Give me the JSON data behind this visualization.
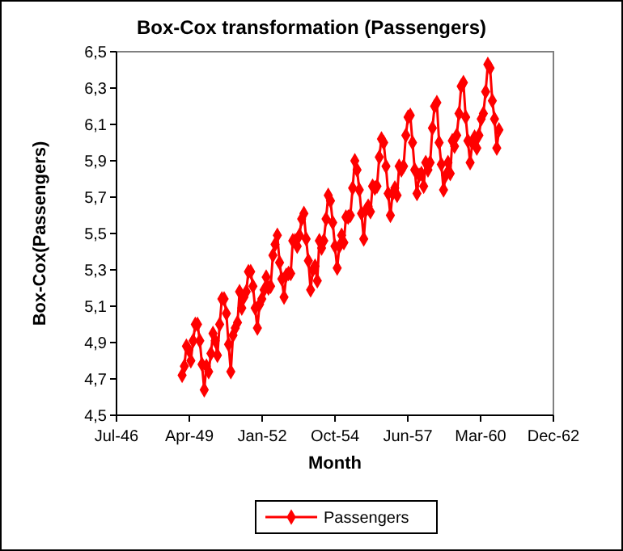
{
  "chart_data": {
    "type": "line",
    "title": "Box-Cox transformation (Passengers)",
    "xlabel": "Month",
    "ylabel": "Box-Cox(Passengers)",
    "x": [
      "1949-01",
      "1949-02",
      "1949-03",
      "1949-04",
      "1949-05",
      "1949-06",
      "1949-07",
      "1949-08",
      "1949-09",
      "1949-10",
      "1949-11",
      "1949-12",
      "1950-01",
      "1950-02",
      "1950-03",
      "1950-04",
      "1950-05",
      "1950-06",
      "1950-07",
      "1950-08",
      "1950-09",
      "1950-10",
      "1950-11",
      "1950-12",
      "1951-01",
      "1951-02",
      "1951-03",
      "1951-04",
      "1951-05",
      "1951-06",
      "1951-07",
      "1951-08",
      "1951-09",
      "1951-10",
      "1951-11",
      "1951-12",
      "1952-01",
      "1952-02",
      "1952-03",
      "1952-04",
      "1952-05",
      "1952-06",
      "1952-07",
      "1952-08",
      "1952-09",
      "1952-10",
      "1952-11",
      "1952-12",
      "1953-01",
      "1953-02",
      "1953-03",
      "1953-04",
      "1953-05",
      "1953-06",
      "1953-07",
      "1953-08",
      "1953-09",
      "1953-10",
      "1953-11",
      "1953-12",
      "1954-01",
      "1954-02",
      "1954-03",
      "1954-04",
      "1954-05",
      "1954-06",
      "1954-07",
      "1954-08",
      "1954-09",
      "1954-10",
      "1954-11",
      "1954-12",
      "1955-01",
      "1955-02",
      "1955-03",
      "1955-04",
      "1955-05",
      "1955-06",
      "1955-07",
      "1955-08",
      "1955-09",
      "1955-10",
      "1955-11",
      "1955-12",
      "1956-01",
      "1956-02",
      "1956-03",
      "1956-04",
      "1956-05",
      "1956-06",
      "1956-07",
      "1956-08",
      "1956-09",
      "1956-10",
      "1956-11",
      "1956-12",
      "1957-01",
      "1957-02",
      "1957-03",
      "1957-04",
      "1957-05",
      "1957-06",
      "1957-07",
      "1957-08",
      "1957-09",
      "1957-10",
      "1957-11",
      "1957-12",
      "1958-01",
      "1958-02",
      "1958-03",
      "1958-04",
      "1958-05",
      "1958-06",
      "1958-07",
      "1958-08",
      "1958-09",
      "1958-10",
      "1958-11",
      "1958-12",
      "1959-01",
      "1959-02",
      "1959-03",
      "1959-04",
      "1959-05",
      "1959-06",
      "1959-07",
      "1959-08",
      "1959-09",
      "1959-10",
      "1959-11",
      "1959-12",
      "1960-01",
      "1960-02",
      "1960-03",
      "1960-04",
      "1960-05",
      "1960-06",
      "1960-07",
      "1960-08",
      "1960-09",
      "1960-10",
      "1960-11",
      "1960-12"
    ],
    "series": [
      {
        "name": "Passengers",
        "color": "#ff0000",
        "values": [
          4.72,
          4.77,
          4.88,
          4.86,
          4.8,
          4.91,
          5.0,
          5.0,
          4.91,
          4.78,
          4.64,
          4.77,
          4.74,
          4.84,
          4.95,
          4.91,
          4.83,
          5.0,
          5.14,
          5.14,
          5.06,
          4.89,
          4.74,
          4.94,
          4.98,
          5.01,
          5.18,
          5.09,
          5.15,
          5.18,
          5.29,
          5.29,
          5.21,
          5.09,
          4.98,
          5.11,
          5.14,
          5.19,
          5.26,
          5.2,
          5.21,
          5.38,
          5.44,
          5.49,
          5.34,
          5.25,
          5.15,
          5.27,
          5.28,
          5.28,
          5.46,
          5.46,
          5.43,
          5.49,
          5.58,
          5.61,
          5.47,
          5.35,
          5.19,
          5.3,
          5.32,
          5.24,
          5.46,
          5.42,
          5.46,
          5.58,
          5.71,
          5.68,
          5.56,
          5.43,
          5.31,
          5.43,
          5.49,
          5.45,
          5.59,
          5.59,
          5.6,
          5.75,
          5.9,
          5.85,
          5.74,
          5.61,
          5.47,
          5.63,
          5.65,
          5.62,
          5.76,
          5.75,
          5.76,
          5.92,
          6.02,
          6.0,
          5.87,
          5.72,
          5.6,
          5.72,
          5.75,
          5.71,
          5.87,
          5.85,
          5.87,
          6.04,
          6.14,
          6.15,
          6.0,
          5.85,
          5.72,
          5.82,
          5.83,
          5.76,
          5.89,
          5.85,
          5.89,
          6.08,
          6.2,
          6.22,
          6.0,
          5.88,
          5.74,
          5.82,
          5.89,
          5.83,
          6.01,
          5.98,
          6.04,
          6.16,
          6.31,
          6.33,
          6.14,
          6.01,
          5.89,
          6.0,
          6.03,
          5.97,
          6.04,
          6.13,
          6.16,
          6.28,
          6.43,
          6.41,
          6.23,
          6.13,
          5.97,
          6.07
        ]
      }
    ],
    "xlim": [
      "1946-07-15",
      "1962-12-19"
    ],
    "xticks": [
      {
        "value": "1946-07-15",
        "label": "Jul-46"
      },
      {
        "value": "1949-04-10",
        "label": "Apr-49"
      },
      {
        "value": "1952-01-05",
        "label": "Jan-52"
      },
      {
        "value": "1954-10-02",
        "label": "Oct-54"
      },
      {
        "value": "1957-06-28",
        "label": "Jun-57"
      },
      {
        "value": "1960-03-24",
        "label": "Mar-60"
      },
      {
        "value": "1962-12-19",
        "label": "Dec-62"
      }
    ],
    "ylim": [
      4.5,
      6.5
    ],
    "yticks": [
      {
        "value": 4.5,
        "label": "4,5"
      },
      {
        "value": 4.7,
        "label": "4,7"
      },
      {
        "value": 4.9,
        "label": "4,9"
      },
      {
        "value": 5.1,
        "label": "5,1"
      },
      {
        "value": 5.3,
        "label": "5,3"
      },
      {
        "value": 5.5,
        "label": "5,5"
      },
      {
        "value": 5.7,
        "label": "5,7"
      },
      {
        "value": 5.9,
        "label": "5,9"
      },
      {
        "value": 6.1,
        "label": "6,1"
      },
      {
        "value": 6.3,
        "label": "6,3"
      },
      {
        "value": 6.5,
        "label": "6,5"
      }
    ],
    "grid": false,
    "legend": "bottom",
    "marker": "diamond",
    "line_style": "solid"
  }
}
